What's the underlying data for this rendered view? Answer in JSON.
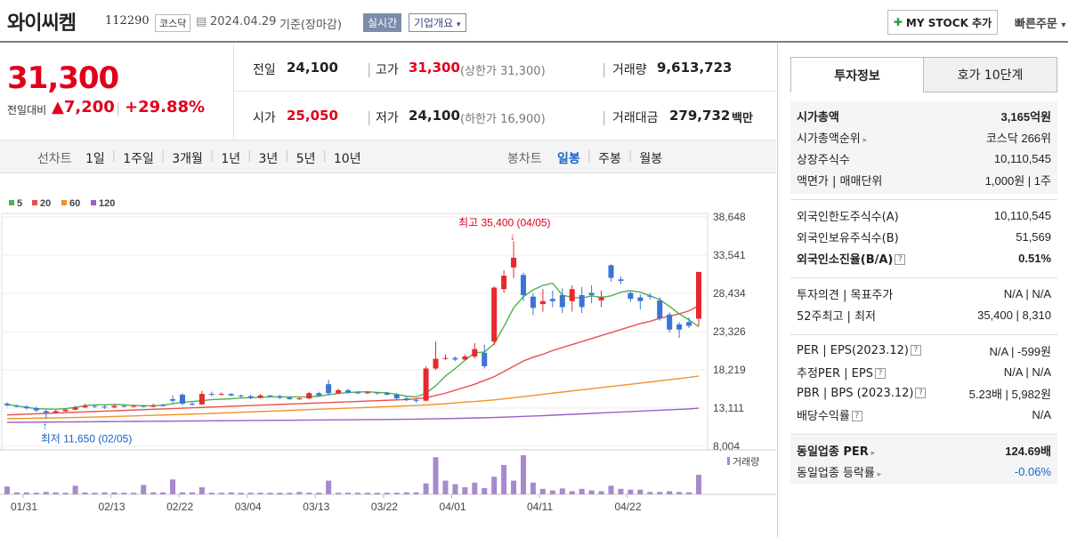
{
  "header": {
    "title": "와이씨켐",
    "code": "112290",
    "market": "코스닥",
    "date": "2024.04.29",
    "basis": "기준(장마감)",
    "realtime": "실시간",
    "company_info": "기업개요",
    "mystock_label": "MY STOCK 추가",
    "quick_order": "빠른주문"
  },
  "price": {
    "current": "31,300",
    "change_label": "전일대비",
    "change": "7,200",
    "change_pct": "+29.88%"
  },
  "summary": {
    "prev_label": "전일",
    "prev": "24,100",
    "high_label": "고가",
    "high": "31,300",
    "upper_limit": "(상한가 31,300)",
    "volume_label": "거래량",
    "volume": "9,613,723",
    "open_label": "시가",
    "open": "25,050",
    "low_label": "저가",
    "low": "24,100",
    "lower_limit": "(하한가 16,900)",
    "amount_label": "거래대금",
    "amount": "279,732",
    "amount_unit": "백만"
  },
  "periods": {
    "line_label": "선차트",
    "line_items": [
      "1일",
      "1주일",
      "3개월",
      "1년",
      "3년",
      "5년",
      "10년"
    ],
    "candle_label": "봉차트",
    "candle_items": [
      "일봉",
      "주봉",
      "월봉"
    ],
    "candle_active": "일봉"
  },
  "chart_data": {
    "type": "candlestick",
    "legend": [
      {
        "name": "5",
        "color": "#4db34d"
      },
      {
        "name": "20",
        "color": "#e85050"
      },
      {
        "name": "60",
        "color": "#f0922a"
      },
      {
        "name": "120",
        "color": "#9a5ec8"
      }
    ],
    "y_ticks": [
      "38,648",
      "33,541",
      "28,434",
      "23,326",
      "18,219",
      "13,111",
      "8,004"
    ],
    "ylim": [
      8004,
      38648
    ],
    "x_ticks": [
      "01/31",
      "02/13",
      "02/22",
      "03/04",
      "03/13",
      "03/22",
      "04/01",
      "04/11",
      "04/22"
    ],
    "max_annotation": "최고 35,400 (04/05)",
    "min_annotation": "최저 11,650 (02/05)",
    "volume_label": "거래량",
    "candles": [
      [
        13700,
        13500,
        13900,
        13300
      ],
      [
        13400,
        13300,
        13600,
        13200
      ],
      [
        13300,
        13100,
        13500,
        12900
      ],
      [
        13100,
        12800,
        13300,
        12600
      ],
      [
        12700,
        12500,
        12900,
        11650
      ],
      [
        12500,
        12700,
        12900,
        12400
      ],
      [
        12700,
        12900,
        13100,
        12600
      ],
      [
        12900,
        13200,
        13400,
        12800
      ],
      [
        13200,
        13400,
        13700,
        13100
      ],
      [
        13400,
        13300,
        13500,
        13100
      ],
      [
        13300,
        13200,
        13500,
        13000
      ],
      [
        13200,
        13400,
        13600,
        13100
      ],
      [
        13400,
        13300,
        13500,
        13200
      ],
      [
        13300,
        13400,
        13600,
        13200
      ],
      [
        13400,
        13300,
        13500,
        13200
      ],
      [
        13300,
        13500,
        13700,
        13200
      ],
      [
        13500,
        13400,
        13700,
        13300
      ],
      [
        14300,
        14100,
        14800,
        13800
      ],
      [
        14900,
        13700,
        15100,
        13500
      ],
      [
        13700,
        13600,
        14000,
        13400
      ],
      [
        13600,
        15000,
        15400,
        13500
      ],
      [
        15000,
        14900,
        15300,
        14700
      ],
      [
        14900,
        15000,
        15200,
        14800
      ],
      [
        15000,
        14800,
        15100,
        14700
      ],
      [
        14800,
        14700,
        14900,
        14500
      ],
      [
        14700,
        14500,
        14900,
        14300
      ],
      [
        14500,
        14800,
        15000,
        14400
      ],
      [
        14800,
        14700,
        14900,
        14600
      ],
      [
        14700,
        14500,
        14900,
        14300
      ],
      [
        14500,
        14300,
        14700,
        14200
      ],
      [
        14300,
        14400,
        14600,
        14200
      ],
      [
        14400,
        15100,
        15300,
        14300
      ],
      [
        15100,
        14800,
        15300,
        14600
      ],
      [
        16300,
        15100,
        16900,
        14900
      ],
      [
        15100,
        15500,
        15700,
        15000
      ],
      [
        15500,
        15200,
        15700,
        15000
      ],
      [
        15200,
        15100,
        15400,
        15000
      ],
      [
        15100,
        15200,
        15400,
        15000
      ],
      [
        15200,
        15100,
        15300,
        14900
      ],
      [
        15100,
        14900,
        15300,
        14800
      ],
      [
        14900,
        14400,
        15100,
        14200
      ],
      [
        14400,
        14200,
        14600,
        14000
      ],
      [
        14200,
        14100,
        14400,
        13800
      ],
      [
        14100,
        18400,
        18700,
        14000
      ],
      [
        18400,
        19700,
        22000,
        18200
      ],
      [
        19700,
        19800,
        20300,
        19500
      ],
      [
        19800,
        19600,
        20000,
        19400
      ],
      [
        19600,
        20000,
        20300,
        19500
      ],
      [
        20000,
        21000,
        21800,
        19700
      ],
      [
        20500,
        18700,
        21600,
        18400
      ],
      [
        22000,
        29200,
        29400,
        21500
      ],
      [
        29000,
        30800,
        31500,
        28500
      ],
      [
        31900,
        33200,
        35400,
        30500
      ],
      [
        30900,
        28200,
        31200,
        27400
      ],
      [
        28000,
        26500,
        28500,
        25500
      ],
      [
        27000,
        27400,
        29000,
        26000
      ],
      [
        27700,
        27400,
        28800,
        26600
      ],
      [
        28200,
        26600,
        29100,
        25800
      ],
      [
        27400,
        29000,
        29500,
        26000
      ],
      [
        28200,
        26600,
        29300,
        25800
      ],
      [
        28500,
        28200,
        29500,
        27100
      ],
      [
        27500,
        27900,
        28800,
        26600
      ],
      [
        32200,
        30500,
        32300,
        30000
      ],
      [
        30300,
        30100,
        30700,
        29700
      ],
      [
        28500,
        27700,
        28700,
        27300
      ],
      [
        27900,
        27400,
        28300,
        26300
      ],
      [
        28100,
        28000,
        28500,
        27600
      ],
      [
        27500,
        25100,
        27900,
        24800
      ],
      [
        25600,
        23600,
        25900,
        23200
      ],
      [
        24300,
        23600,
        24600,
        22500
      ],
      [
        24600,
        24100,
        25200,
        23800
      ],
      [
        25050,
        31300,
        31300,
        24100
      ]
    ],
    "ma5": [
      13600,
      13400,
      13200,
      13050,
      13000,
      12950,
      13050,
      13200,
      13450,
      13550,
      13550,
      13600,
      13550,
      13450,
      13450,
      13400,
      13500,
      13700,
      13900,
      14000,
      14100,
      14250,
      14300,
      14350,
      14450,
      14500,
      14550,
      14600,
      14600,
      14600,
      14600,
      14600,
      14700,
      14900,
      15050,
      15200,
      15250,
      15300,
      15200,
      15150,
      14950,
      14700,
      14600,
      15100,
      16100,
      17400,
      18400,
      19500,
      20500,
      20600,
      21700,
      24000,
      26500,
      28000,
      28900,
      29500,
      29800,
      28200,
      27900,
      27800,
      28100,
      27900,
      28100,
      28600,
      28800,
      28600,
      28100,
      27600,
      26700,
      25700,
      24900,
      24000
    ],
    "ma20": [
      12200,
      12250,
      12300,
      12350,
      12400,
      12450,
      12500,
      12550,
      12600,
      12650,
      12700,
      12750,
      12800,
      12850,
      12900,
      12950,
      13000,
      13050,
      13100,
      13150,
      13200,
      13250,
      13300,
      13350,
      13400,
      13450,
      13500,
      13550,
      13600,
      13650,
      13700,
      13750,
      13800,
      13850,
      13900,
      13950,
      14000,
      14050,
      14100,
      14150,
      14200,
      14250,
      14350,
      14500,
      14800,
      15100,
      15500,
      15900,
      16300,
      16800,
      17300,
      18000,
      18700,
      19400,
      19900,
      20300,
      20800,
      21200,
      21600,
      22000,
      22400,
      22800,
      23200,
      23600,
      24000,
      24400,
      24700,
      25100,
      25400,
      25700,
      26100,
      26800
    ],
    "ma60": [
      11700,
      11720,
      11740,
      11760,
      11780,
      11800,
      11830,
      11860,
      11890,
      11920,
      11950,
      11990,
      12030,
      12070,
      12110,
      12150,
      12190,
      12230,
      12270,
      12310,
      12350,
      12400,
      12450,
      12500,
      12550,
      12600,
      12650,
      12700,
      12750,
      12800,
      12850,
      12900,
      12950,
      13000,
      13050,
      13100,
      13150,
      13200,
      13250,
      13300,
      13350,
      13400,
      13460,
      13520,
      13600,
      13700,
      13800,
      13900,
      14000,
      14100,
      14200,
      14350,
      14500,
      14650,
      14800,
      14950,
      15100,
      15250,
      15400,
      15550,
      15700,
      15850,
      16000,
      16150,
      16300,
      16450,
      16600,
      16750,
      16900,
      17050,
      17200,
      17400
    ],
    "ma120": [
      11200,
      11210,
      11220,
      11230,
      11240,
      11250,
      11260,
      11270,
      11280,
      11290,
      11300,
      11310,
      11320,
      11330,
      11340,
      11350,
      11360,
      11370,
      11380,
      11390,
      11400,
      11410,
      11420,
      11430,
      11440,
      11450,
      11460,
      11470,
      11480,
      11490,
      11500,
      11510,
      11520,
      11530,
      11540,
      11550,
      11560,
      11570,
      11580,
      11590,
      11600,
      11620,
      11640,
      11660,
      11680,
      11700,
      11730,
      11760,
      11790,
      11820,
      11860,
      11900,
      11950,
      12000,
      12050,
      12100,
      12160,
      12220,
      12280,
      12340,
      12400,
      12460,
      12520,
      12580,
      12640,
      12700,
      12760,
      12820,
      12880,
      12940,
      13000,
      13100
    ],
    "volume": [
      20,
      5,
      5,
      4,
      6,
      5,
      4,
      22,
      5,
      4,
      5,
      5,
      4,
      4,
      24,
      5,
      5,
      38,
      5,
      5,
      18,
      4,
      4,
      5,
      4,
      4,
      4,
      4,
      4,
      4,
      6,
      4,
      4,
      35,
      4,
      4,
      4,
      4,
      4,
      4,
      4,
      5,
      5,
      28,
      95,
      35,
      26,
      18,
      30,
      16,
      45,
      75,
      35,
      100,
      30,
      14,
      10,
      15,
      8,
      14,
      10,
      8,
      22,
      14,
      12,
      12,
      6,
      6,
      8,
      6,
      5,
      50
    ]
  },
  "sidebar": {
    "tab_invest": "투자정보",
    "tab_hoga": "호가 10단계",
    "g1": [
      {
        "label": "시가총액",
        "value": "3,165억원",
        "bold": true
      },
      {
        "label": "시가총액순위",
        "value": "코스닥 266위",
        "arrow": true
      },
      {
        "label": "상장주식수",
        "value": "10,110,545"
      },
      {
        "label": "액면가 | 매매단위",
        "value": "1,000원 | 1주"
      }
    ],
    "g2": [
      {
        "label": "외국인한도주식수(A)",
        "value": "10,110,545"
      },
      {
        "label": "외국인보유주식수(B)",
        "value": "51,569"
      },
      {
        "label": "외국인소진율(B/A)",
        "value": "0.51%",
        "bold": true,
        "q": true
      }
    ],
    "g3": [
      {
        "label": "투자의견 | 목표주가",
        "value": "N/A | N/A"
      },
      {
        "label": "52주최고 | 최저",
        "value": "35,400 | 8,310"
      }
    ],
    "g4": [
      {
        "label": "PER | EPS(2023.12)",
        "value": "N/A | -599원",
        "q": true
      },
      {
        "label": "추정PER | EPS",
        "value": "N/A | N/A",
        "q": true
      },
      {
        "label": "PBR | BPS (2023.12)",
        "value": "5.23배 | 5,982원",
        "q": true
      },
      {
        "label": "배당수익률",
        "value": "N/A",
        "q": true
      }
    ],
    "g5": [
      {
        "label": "동일업종 PER",
        "value": "124.69배",
        "bold": true,
        "arrow": true
      },
      {
        "label": "동일업종 등락률",
        "value": "-0.06%",
        "arrow": true,
        "blue": true
      }
    ]
  }
}
